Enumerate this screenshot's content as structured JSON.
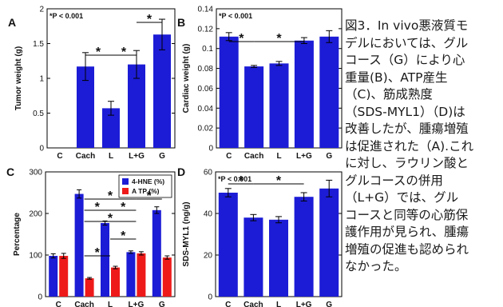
{
  "figure": {
    "panels": [
      {
        "letter": "A"
      },
      {
        "letter": "B"
      },
      {
        "letter": "C"
      },
      {
        "letter": "D"
      }
    ],
    "caption_lines": [
      "図3．In vivo悪液質モ",
      "デルにおいては、グル",
      "コース（G）により心",
      "重量(B)、ATP産生",
      "（C)、筋成熟度",
      "（SDS-MYL1）（D)は",
      "改善したが、腫瘍増殖",
      "は促進された（A).これ",
      "に対し、ラウリン酸と",
      "グルコースの併用",
      "（L+G）では、グル",
      "コースと同等の心筋保",
      "護作用が見られ、腫瘍",
      "増殖の促進も認められ",
      "なかった。"
    ],
    "colors": {
      "blue": "#1c1cd6",
      "red": "#ee1a1a"
    }
  },
  "chart_data": [
    {
      "type": "bar",
      "panel": "A",
      "categories": [
        "C",
        "Cach",
        "L",
        "L+G",
        "G"
      ],
      "values": [
        0,
        1.17,
        0.57,
        1.2,
        1.63
      ],
      "errors": [
        0,
        0.2,
        0.1,
        0.2,
        0.22
      ],
      "ylabel": "Tumor weight (g)",
      "ylim": [
        0,
        2
      ],
      "yticks": [
        "0",
        "0.5",
        "1",
        "1.5",
        "2"
      ],
      "annotation": "*P < 0.001",
      "significance": [
        {
          "from": 1,
          "to": 2,
          "label": "*"
        },
        {
          "from": 2,
          "to": 3,
          "label": "*"
        },
        {
          "from": 3,
          "to": 4,
          "label": "*"
        }
      ]
    },
    {
      "type": "bar",
      "panel": "B",
      "categories": [
        "C",
        "Cach",
        "L",
        "L+G",
        "G"
      ],
      "values": [
        0.112,
        0.082,
        0.085,
        0.108,
        0.112
      ],
      "errors": [
        0.004,
        0.001,
        0.002,
        0.003,
        0.006
      ],
      "ylabel": "Cardiac weight (g)",
      "ylim": [
        0,
        0.14
      ],
      "yticks": [
        "0",
        "0.02",
        "0.04",
        "0.06",
        "0.08",
        "0.1",
        "0.12",
        "0.14"
      ],
      "annotation": "*P < 0.001",
      "significance": [
        {
          "from": 0,
          "to": 1,
          "label": "*"
        },
        {
          "from": 1,
          "to": 3,
          "label": "*"
        }
      ]
    },
    {
      "type": "bar",
      "panel": "C",
      "categories": [
        "C",
        "Cach",
        "L",
        "L+G",
        "G"
      ],
      "series": [
        {
          "name": "4-HNE (%)",
          "values": [
            98,
            247,
            177,
            107,
            208
          ],
          "errors": [
            5,
            10,
            5,
            3,
            8
          ],
          "color": "#1c1cd6"
        },
        {
          "name": "A TP (%)",
          "values": [
            98,
            44,
            70,
            104,
            94
          ],
          "errors": [
            6,
            2,
            3,
            4,
            4
          ],
          "color": "#ee1a1a"
        }
      ],
      "ylabel": "Percentage",
      "ylim": [
        0,
        300
      ],
      "yticks": [
        "0",
        "100",
        "200",
        "300"
      ],
      "legend": "top-right",
      "significance": [
        {
          "from": 1,
          "to": 3,
          "label": "*"
        },
        {
          "from": 3,
          "to": 4,
          "label": "*"
        },
        {
          "from": 1,
          "to": 2,
          "label": "*"
        },
        {
          "from": 2,
          "to": 3,
          "label": "*"
        },
        {
          "from": 1,
          "to": 3,
          "label": "*"
        },
        {
          "from": 2,
          "to": 3,
          "label": "*"
        },
        {
          "from": 1,
          "to": 2,
          "label": "*"
        }
      ]
    },
    {
      "type": "bar",
      "panel": "D",
      "categories": [
        "C",
        "Cach",
        "L",
        "L+G",
        "G"
      ],
      "values": [
        50,
        38,
        37,
        48,
        52
      ],
      "errors": [
        2,
        1.5,
        1.5,
        2,
        4
      ],
      "ylabel": "SDS-MYL1 (ng/g)",
      "ylim": [
        0,
        60
      ],
      "yticks": [
        "0",
        "20",
        "40",
        "60"
      ],
      "annotation": "*P < 0.001",
      "significance": [
        {
          "from": 0,
          "to": 1,
          "label": "*"
        },
        {
          "from": 1,
          "to": 3,
          "label": "*"
        }
      ]
    }
  ]
}
